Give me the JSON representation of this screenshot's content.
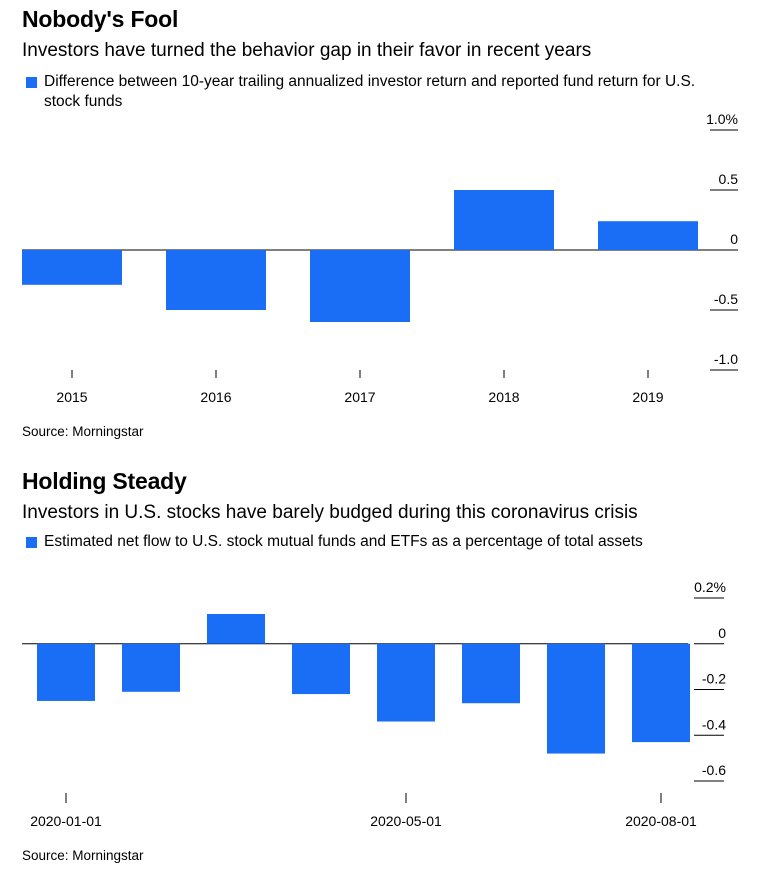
{
  "chart_data": [
    {
      "type": "bar",
      "title": "Nobody's Fool",
      "subtitle": "Investors have turned the behavior gap in their favor in recent years",
      "legend": [
        {
          "label": "Difference between 10-year trailing annualized investor return and reported fund return for U.S. stock funds",
          "color": "#1a6ef5"
        }
      ],
      "categories": [
        "2015",
        "2016",
        "2017",
        "2018",
        "2019"
      ],
      "series": [
        {
          "values": [
            -0.29,
            -0.5,
            -0.6,
            0.5,
            0.24
          ]
        }
      ],
      "yticks": [
        1.0,
        0.5,
        0,
        -0.5,
        -1.0
      ],
      "ytick_labels": [
        "1.0%",
        "0.5",
        "0",
        "-0.5",
        "-1.0"
      ],
      "ylim": [
        -1.0,
        1.0
      ],
      "yaxis_position": "right",
      "source": "Source: Morningstar"
    },
    {
      "type": "bar",
      "title": "Holding Steady",
      "subtitle": "Investors in U.S. stocks have barely budged during this coronavirus crisis",
      "legend": [
        {
          "label": "Estimated net flow to U.S. stock mutual funds and ETFs as a percentage of total assets",
          "color": "#1a6ef5"
        }
      ],
      "series": [
        {
          "values": [
            -0.25,
            -0.21,
            0.13,
            -0.22,
            -0.34,
            -0.26,
            -0.48,
            -0.43
          ]
        }
      ],
      "xtick_labels": [
        "2020-01-01",
        "2020-05-01",
        "2020-08-01"
      ],
      "yticks": [
        0.2,
        0,
        -0.2,
        -0.4,
        -0.6
      ],
      "ytick_labels": [
        "0.2%",
        "0",
        "-0.2",
        "-0.4",
        "-0.6"
      ],
      "ylim": [
        -0.6,
        0.2
      ],
      "yaxis_position": "right",
      "source": "Source: Morningstar"
    }
  ]
}
